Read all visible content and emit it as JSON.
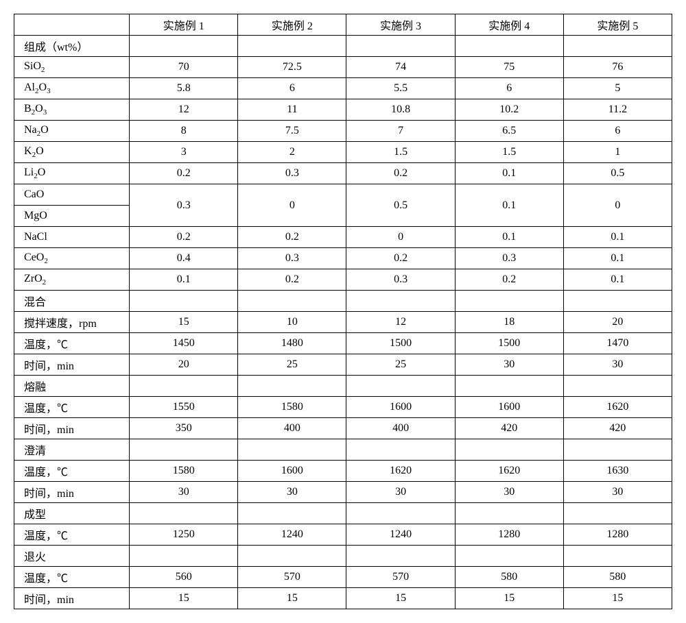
{
  "table": {
    "columns": [
      "",
      "实施例 1",
      "实施例 2",
      "实施例 3",
      "实施例 4",
      "实施例 5"
    ],
    "comp_header": "组成（wt%）",
    "row_SiO2": {
      "label": "SiO",
      "sub": "2",
      "vals": [
        "70",
        "72.5",
        "74",
        "75",
        "76"
      ]
    },
    "row_Al2O3": {
      "labelA": "Al",
      "subA": "2",
      "labelB": "O",
      "subB": "3",
      "vals": [
        "5.8",
        "6",
        "5.5",
        "6",
        "5"
      ]
    },
    "row_B2O3": {
      "labelA": "B",
      "subA": "2",
      "labelB": "O",
      "subB": "3",
      "vals": [
        "12",
        "11",
        "10.8",
        "10.2",
        "11.2"
      ]
    },
    "row_Na2O": {
      "label": "Na",
      "sub": "2",
      "suffix": "O",
      "vals": [
        "8",
        "7.5",
        "7",
        "6.5",
        "6"
      ]
    },
    "row_K2O": {
      "label": "K",
      "sub": "2",
      "suffix": "O",
      "vals": [
        "3",
        "2",
        "1.5",
        "1.5",
        "1"
      ]
    },
    "row_Li2O": {
      "label": "Li",
      "sub": "2",
      "suffix": "O",
      "vals": [
        "0.2",
        "0.3",
        "0.2",
        "0.1",
        "0.5"
      ]
    },
    "row_CaO": {
      "label": "CaO"
    },
    "row_MgO": {
      "label": "MgO"
    },
    "row_CaMg_vals": [
      "0.3",
      "0",
      "0.5",
      "0.1",
      "0"
    ],
    "row_NaCl": {
      "label": "NaCl",
      "vals": [
        "0.2",
        "0.2",
        "0",
        "0.1",
        "0.1"
      ]
    },
    "row_CeO2": {
      "label": "CeO",
      "sub": "2",
      "vals": [
        "0.4",
        "0.3",
        "0.2",
        "0.3",
        "0.1"
      ]
    },
    "row_ZrO2": {
      "label": "ZrO",
      "sub": "2",
      "vals": [
        "0.1",
        "0.2",
        "0.3",
        "0.2",
        "0.1"
      ]
    },
    "sec_mix": "混合",
    "row_rpm": {
      "label": "搅拌速度，rpm",
      "vals": [
        "15",
        "10",
        "12",
        "18",
        "20"
      ]
    },
    "row_mix_temp": {
      "label": "温度，℃",
      "vals": [
        "1450",
        "1480",
        "1500",
        "1500",
        "1470"
      ]
    },
    "row_mix_time": {
      "label": "时间，min",
      "vals": [
        "20",
        "25",
        "25",
        "30",
        "30"
      ]
    },
    "sec_melt": "熔融",
    "row_melt_temp": {
      "label": "温度，℃",
      "vals": [
        "1550",
        "1580",
        "1600",
        "1600",
        "1620"
      ]
    },
    "row_melt_time": {
      "label": "时间，min",
      "vals": [
        "350",
        "400",
        "400",
        "420",
        "420"
      ]
    },
    "sec_clarify": "澄清",
    "row_cl_temp": {
      "label": "温度，℃",
      "vals": [
        "1580",
        "1600",
        "1620",
        "1620",
        "1630"
      ]
    },
    "row_cl_time": {
      "label": "时间，min",
      "vals": [
        "30",
        "30",
        "30",
        "30",
        "30"
      ]
    },
    "sec_form": "成型",
    "row_fm_temp": {
      "label": "温度，℃",
      "vals": [
        "1250",
        "1240",
        "1240",
        "1280",
        "1280"
      ]
    },
    "sec_anneal": "退火",
    "row_an_temp": {
      "label": "温度，℃",
      "vals": [
        "560",
        "570",
        "570",
        "580",
        "580"
      ]
    },
    "row_an_time": {
      "label": "时间，min",
      "vals": [
        "15",
        "15",
        "15",
        "15",
        "15"
      ]
    }
  }
}
